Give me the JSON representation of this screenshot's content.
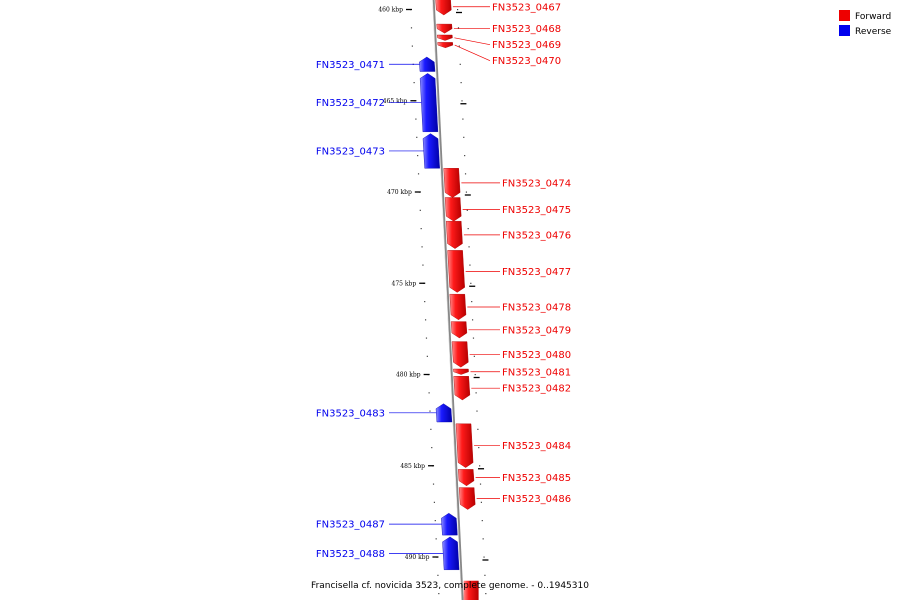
{
  "caption": "Francisella cf. novicida 3523, complete genome. - 0..1945310",
  "colors": {
    "forward": "#ee0000",
    "reverse": "#0000ee",
    "backbone": "#888888"
  },
  "legend": [
    {
      "label": "Forward",
      "color": "#ee0000"
    },
    {
      "label": "Reverse",
      "color": "#0000ee"
    }
  ],
  "ticks": [
    {
      "kbp": 460,
      "label": "460 kbp"
    },
    {
      "kbp": 465,
      "label": "465 kbp"
    },
    {
      "kbp": 470,
      "label": "470 kbp"
    },
    {
      "kbp": 475,
      "label": "475 kbp"
    },
    {
      "kbp": 480,
      "label": "480 kbp"
    },
    {
      "kbp": 485,
      "label": "485 kbp"
    },
    {
      "kbp": 490,
      "label": "490 kbp"
    }
  ],
  "genes": [
    {
      "id": "FN3523_0467",
      "strand": "forward",
      "start_kbp": 459.4,
      "end_kbp": 460.3
    },
    {
      "id": "FN3523_0468",
      "strand": "forward",
      "start_kbp": 460.8,
      "end_kbp": 461.3
    },
    {
      "id": "FN3523_0469",
      "strand": "forward",
      "start_kbp": 461.4,
      "end_kbp": 461.7
    },
    {
      "id": "FN3523_0470",
      "strand": "forward",
      "start_kbp": 461.8,
      "end_kbp": 462.1
    },
    {
      "id": "FN3523_0471",
      "strand": "reverse",
      "start_kbp": 462.6,
      "end_kbp": 463.4
    },
    {
      "id": "FN3523_0472",
      "strand": "reverse",
      "start_kbp": 463.5,
      "end_kbp": 466.7
    },
    {
      "id": "FN3523_0473",
      "strand": "reverse",
      "start_kbp": 466.8,
      "end_kbp": 468.7
    },
    {
      "id": "FN3523_0474",
      "strand": "forward",
      "start_kbp": 468.7,
      "end_kbp": 470.3
    },
    {
      "id": "FN3523_0475",
      "strand": "forward",
      "start_kbp": 470.3,
      "end_kbp": 471.6
    },
    {
      "id": "FN3523_0476",
      "strand": "forward",
      "start_kbp": 471.6,
      "end_kbp": 473.1
    },
    {
      "id": "FN3523_0477",
      "strand": "forward",
      "start_kbp": 473.2,
      "end_kbp": 475.5
    },
    {
      "id": "FN3523_0478",
      "strand": "forward",
      "start_kbp": 475.6,
      "end_kbp": 477.0
    },
    {
      "id": "FN3523_0479",
      "strand": "forward",
      "start_kbp": 477.1,
      "end_kbp": 478.0
    },
    {
      "id": "FN3523_0480",
      "strand": "forward",
      "start_kbp": 478.2,
      "end_kbp": 479.6
    },
    {
      "id": "FN3523_0481",
      "strand": "forward",
      "start_kbp": 479.7,
      "end_kbp": 480.0
    },
    {
      "id": "FN3523_0482",
      "strand": "forward",
      "start_kbp": 480.1,
      "end_kbp": 481.4
    },
    {
      "id": "FN3523_0483",
      "strand": "reverse",
      "start_kbp": 481.6,
      "end_kbp": 482.6
    },
    {
      "id": "FN3523_0484",
      "strand": "forward",
      "start_kbp": 482.7,
      "end_kbp": 485.1
    },
    {
      "id": "FN3523_0485",
      "strand": "forward",
      "start_kbp": 485.2,
      "end_kbp": 486.1
    },
    {
      "id": "FN3523_0486",
      "strand": "forward",
      "start_kbp": 486.2,
      "end_kbp": 487.4
    },
    {
      "id": "FN3523_0487",
      "strand": "reverse",
      "start_kbp": 487.6,
      "end_kbp": 488.8
    },
    {
      "id": "FN3523_0488",
      "strand": "reverse",
      "start_kbp": 488.9,
      "end_kbp": 490.7
    }
  ]
}
